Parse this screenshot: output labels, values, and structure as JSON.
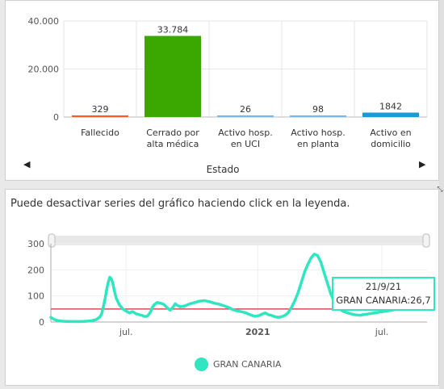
{
  "colors": {
    "fallecido": "#ff5a1f",
    "cerrado": "#3aa800",
    "activo_uci": "#74b8f0",
    "activo_planta": "#74b8f0",
    "activo_domicilio": "#1b9ad8",
    "line_series": "#2ee6c0",
    "threshold": "#e24a4a"
  },
  "top_chart": {
    "axis_title": "Estado",
    "prev_icon": "triangle-left-icon",
    "next_icon": "triangle-right-icon",
    "chart_data": {
      "type": "bar",
      "categories": [
        [
          "Fallecido"
        ],
        [
          "Cerrado por",
          "alta médica"
        ],
        [
          "Activo hosp.",
          "en UCI"
        ],
        [
          "Activo hosp.",
          "en planta"
        ],
        [
          "Activo en",
          "domicilio"
        ]
      ],
      "values": [
        329,
        33784,
        26,
        98,
        1842
      ],
      "value_labels": [
        "329",
        "33.784",
        "26",
        "98",
        "1842"
      ],
      "ylim": [
        0,
        40000
      ],
      "yticks": [
        0,
        20000,
        40000
      ],
      "ytick_labels": [
        "0",
        "20.000",
        "40.000"
      ],
      "xlabel": "Estado",
      "grid": true
    }
  },
  "bottom_chart": {
    "instruction": "Puede desactivar series del gráfico haciendo click en la leyenda.",
    "tooltip": {
      "date": "21/9/21",
      "text": "GRAN CANARIA:26,7"
    },
    "legend_label": "GRAN CANARIA",
    "chart_data": {
      "type": "line",
      "series": [
        {
          "name": "GRAN CANARIA",
          "x_index": [
            0,
            4,
            8,
            14,
            22,
            30,
            38,
            44,
            50,
            56,
            60,
            62,
            64,
            66,
            68,
            70,
            72,
            74,
            76,
            78,
            80,
            84,
            88,
            92,
            96,
            100,
            104,
            108,
            112,
            114,
            116,
            118,
            120,
            122,
            124,
            126,
            128,
            130,
            134,
            138,
            142,
            146,
            150,
            152,
            154,
            158,
            164,
            170,
            176,
            182,
            188,
            194,
            200,
            206,
            212,
            218,
            222,
            226,
            232,
            238,
            242,
            246,
            250,
            254,
            258,
            262,
            266,
            270,
            274,
            278,
            282,
            286,
            290,
            294,
            298,
            302,
            306,
            310,
            314,
            318,
            322,
            326,
            330,
            334,
            338,
            342,
            346,
            350,
            354,
            358,
            362,
            366,
            370,
            374,
            378,
            382,
            386,
            390,
            394,
            398,
            402,
            406,
            410,
            414,
            418,
            420,
            422,
            424,
            426,
            428,
            430,
            432,
            434,
            436,
            438,
            440,
            442,
            444,
            446,
            448,
            450,
            452
          ],
          "values": [
            18,
            10,
            6,
            3,
            2,
            2,
            2,
            3,
            5,
            10,
            20,
            30,
            55,
            85,
            120,
            150,
            172,
            165,
            145,
            115,
            90,
            65,
            50,
            42,
            35,
            40,
            32,
            28,
            25,
            22,
            21,
            23,
            30,
            40,
            55,
            65,
            70,
            75,
            72,
            68,
            55,
            45,
            60,
            70,
            65,
            58,
            62,
            70,
            75,
            80,
            82,
            78,
            72,
            68,
            62,
            55,
            48,
            44,
            40,
            36,
            30,
            25,
            22,
            24,
            30,
            35,
            28,
            25,
            20,
            18,
            20,
            25,
            35,
            55,
            80,
            110,
            150,
            190,
            220,
            245,
            260,
            255,
            230,
            190,
            150,
            110,
            80,
            60,
            48,
            40,
            36,
            32,
            29,
            27,
            26,
            28,
            30,
            32,
            34,
            36,
            38,
            40,
            42,
            44,
            46,
            48,
            50,
            52,
            54,
            56,
            58,
            60,
            62,
            64,
            66,
            68,
            70,
            72,
            74,
            76,
            78,
            80
          ],
          "x_labels": [
            "jul.",
            "2021",
            "jul."
          ]
        }
      ],
      "ylim": [
        0,
        300
      ],
      "yticks": [
        0,
        100,
        200,
        300
      ],
      "ytick_labels": [
        "0",
        "100",
        "200",
        "300"
      ],
      "threshold": 50,
      "grid": true
    }
  },
  "window": {
    "resize_icon": "resize-icon"
  }
}
